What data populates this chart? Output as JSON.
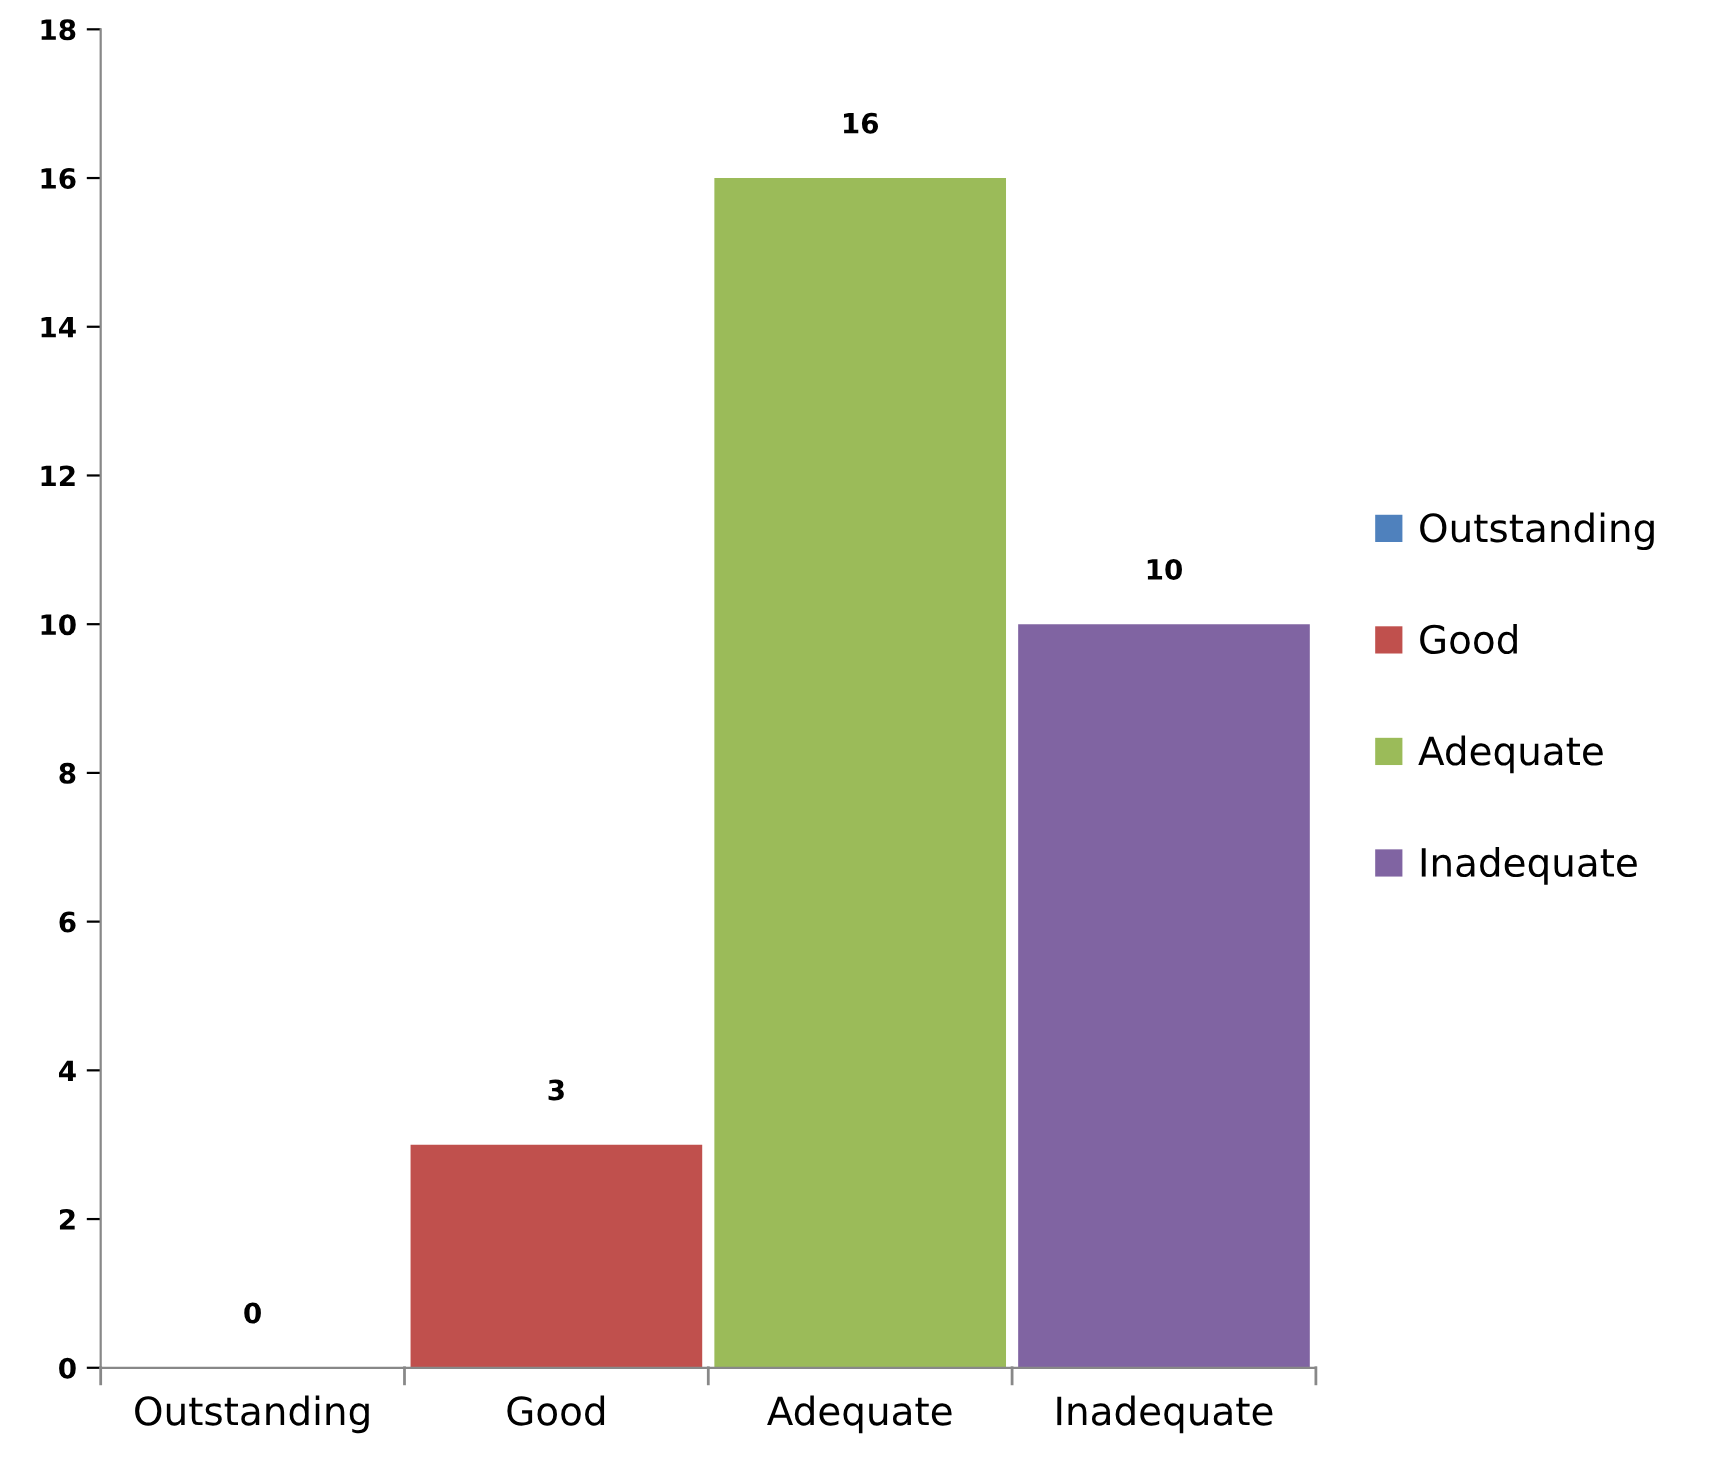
{
  "chart_data": {
    "type": "bar",
    "categories": [
      "Outstanding",
      "Good",
      "Adequate",
      "Inadequate"
    ],
    "series": [
      {
        "name": "Outstanding",
        "color": "#4f81bd",
        "values": [
          0,
          null,
          null,
          null
        ]
      },
      {
        "name": "Good",
        "color": "#c0504d",
        "values": [
          null,
          3,
          null,
          null
        ]
      },
      {
        "name": "Adequate",
        "color": "#9bbb59",
        "values": [
          null,
          null,
          16,
          null
        ]
      },
      {
        "name": "Inadequate",
        "color": "#8064a2",
        "values": [
          null,
          null,
          null,
          10
        ]
      }
    ],
    "ylim": [
      0,
      18
    ],
    "yticks": [
      0,
      2,
      4,
      6,
      8,
      10,
      12,
      14,
      16,
      18
    ],
    "data_labels": true,
    "legend": "right",
    "grid": false
  }
}
